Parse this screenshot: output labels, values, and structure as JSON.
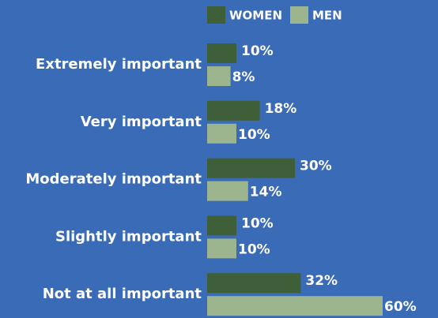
{
  "chart_data": {
    "type": "barh",
    "categories": [
      "Extremely important",
      "Very important",
      "Moderately important",
      "Slightly important",
      "Not at all important"
    ],
    "series": [
      {
        "name": "WOMEN",
        "color": "#3f5f38",
        "values": [
          10,
          18,
          30,
          10,
          32
        ],
        "value_labels": [
          "10%",
          "18%",
          "30%",
          "10%",
          "32%"
        ]
      },
      {
        "name": "MEN",
        "color": "#9cb58e",
        "values": [
          8,
          10,
          14,
          10,
          60
        ],
        "value_labels": [
          "8%",
          "10%",
          "14%",
          "10%",
          "60%"
        ]
      }
    ],
    "background": "#3a6bb6"
  }
}
